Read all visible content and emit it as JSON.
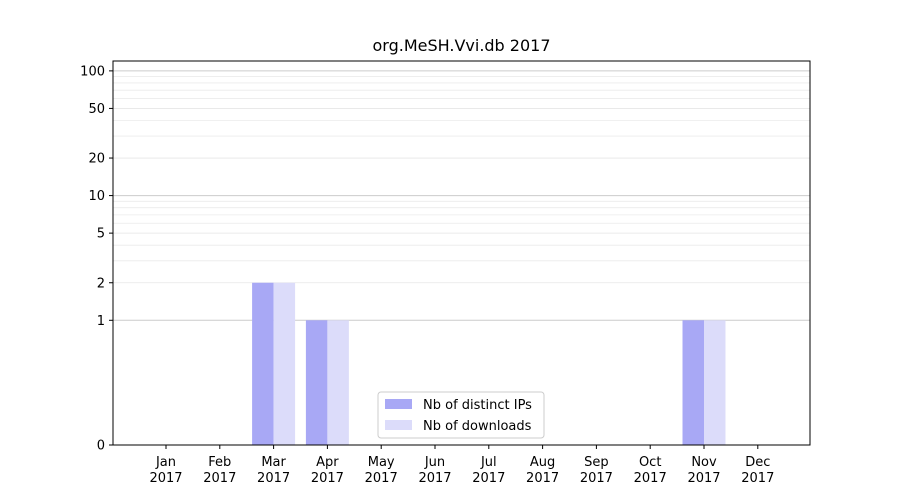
{
  "chart_data": {
    "type": "bar",
    "title": "org.MeSH.Vvi.db 2017",
    "xlabel": "",
    "ylabel": "",
    "yscale": "symlog",
    "ylim": [
      0,
      120
    ],
    "yticks": [
      0,
      1,
      2,
      5,
      10,
      20,
      50,
      100
    ],
    "ytick_labels": [
      "0",
      "1",
      "2",
      "5",
      "10",
      "20",
      "50",
      "100"
    ],
    "categories": [
      "Jan\n2017",
      "Feb\n2017",
      "Mar\n2017",
      "Apr\n2017",
      "May\n2017",
      "Jun\n2017",
      "Jul\n2017",
      "Aug\n2017",
      "Sep\n2017",
      "Oct\n2017",
      "Nov\n2017",
      "Dec\n2017"
    ],
    "series": [
      {
        "name": "Nb of distinct IPs",
        "color": "#a8a8f5",
        "values": [
          0,
          0,
          2,
          1,
          0,
          0,
          0,
          0,
          0,
          0,
          1,
          0
        ]
      },
      {
        "name": "Nb of downloads",
        "color": "#dcdcfa",
        "values": [
          0,
          0,
          2,
          1,
          0,
          0,
          0,
          0,
          0,
          0,
          1,
          0
        ]
      }
    ],
    "grid": true,
    "legend_position": "lower-center"
  }
}
